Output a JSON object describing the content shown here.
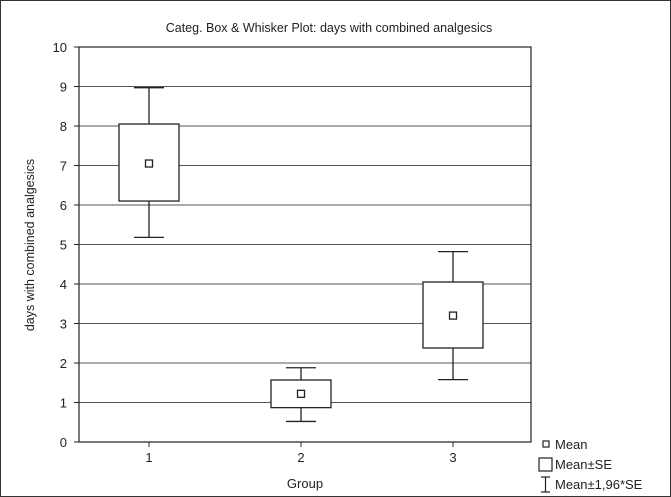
{
  "chart_data": {
    "type": "box",
    "title": "Categ. Box & Whisker Plot: days with  combined analgesics",
    "xlabel": "Group",
    "ylabel": "days with  combined analgesics",
    "ylim": [
      0,
      10
    ],
    "yticks": [
      "0",
      "1",
      "2",
      "3",
      "4",
      "5",
      "6",
      "7",
      "8",
      "9",
      "10"
    ],
    "categories": [
      "1",
      "2",
      "3"
    ],
    "groups": [
      {
        "category": "1",
        "mean": 7.05,
        "box_low": 6.1,
        "box_high": 8.05,
        "whisker_low": 5.18,
        "whisker_high": 8.97
      },
      {
        "category": "2",
        "mean": 1.22,
        "box_low": 0.87,
        "box_high": 1.57,
        "whisker_low": 0.52,
        "whisker_high": 1.88
      },
      {
        "category": "3",
        "mean": 3.2,
        "box_low": 2.38,
        "box_high": 4.05,
        "whisker_low": 1.58,
        "whisker_high": 4.82
      }
    ],
    "grid": true,
    "legend": {
      "position": "bottom-right",
      "entries": [
        {
          "marker": "small-square",
          "label": "Mean"
        },
        {
          "marker": "box",
          "label": "Mean±SE"
        },
        {
          "marker": "whisker",
          "label": "Mean±1,96*SE"
        }
      ]
    }
  }
}
